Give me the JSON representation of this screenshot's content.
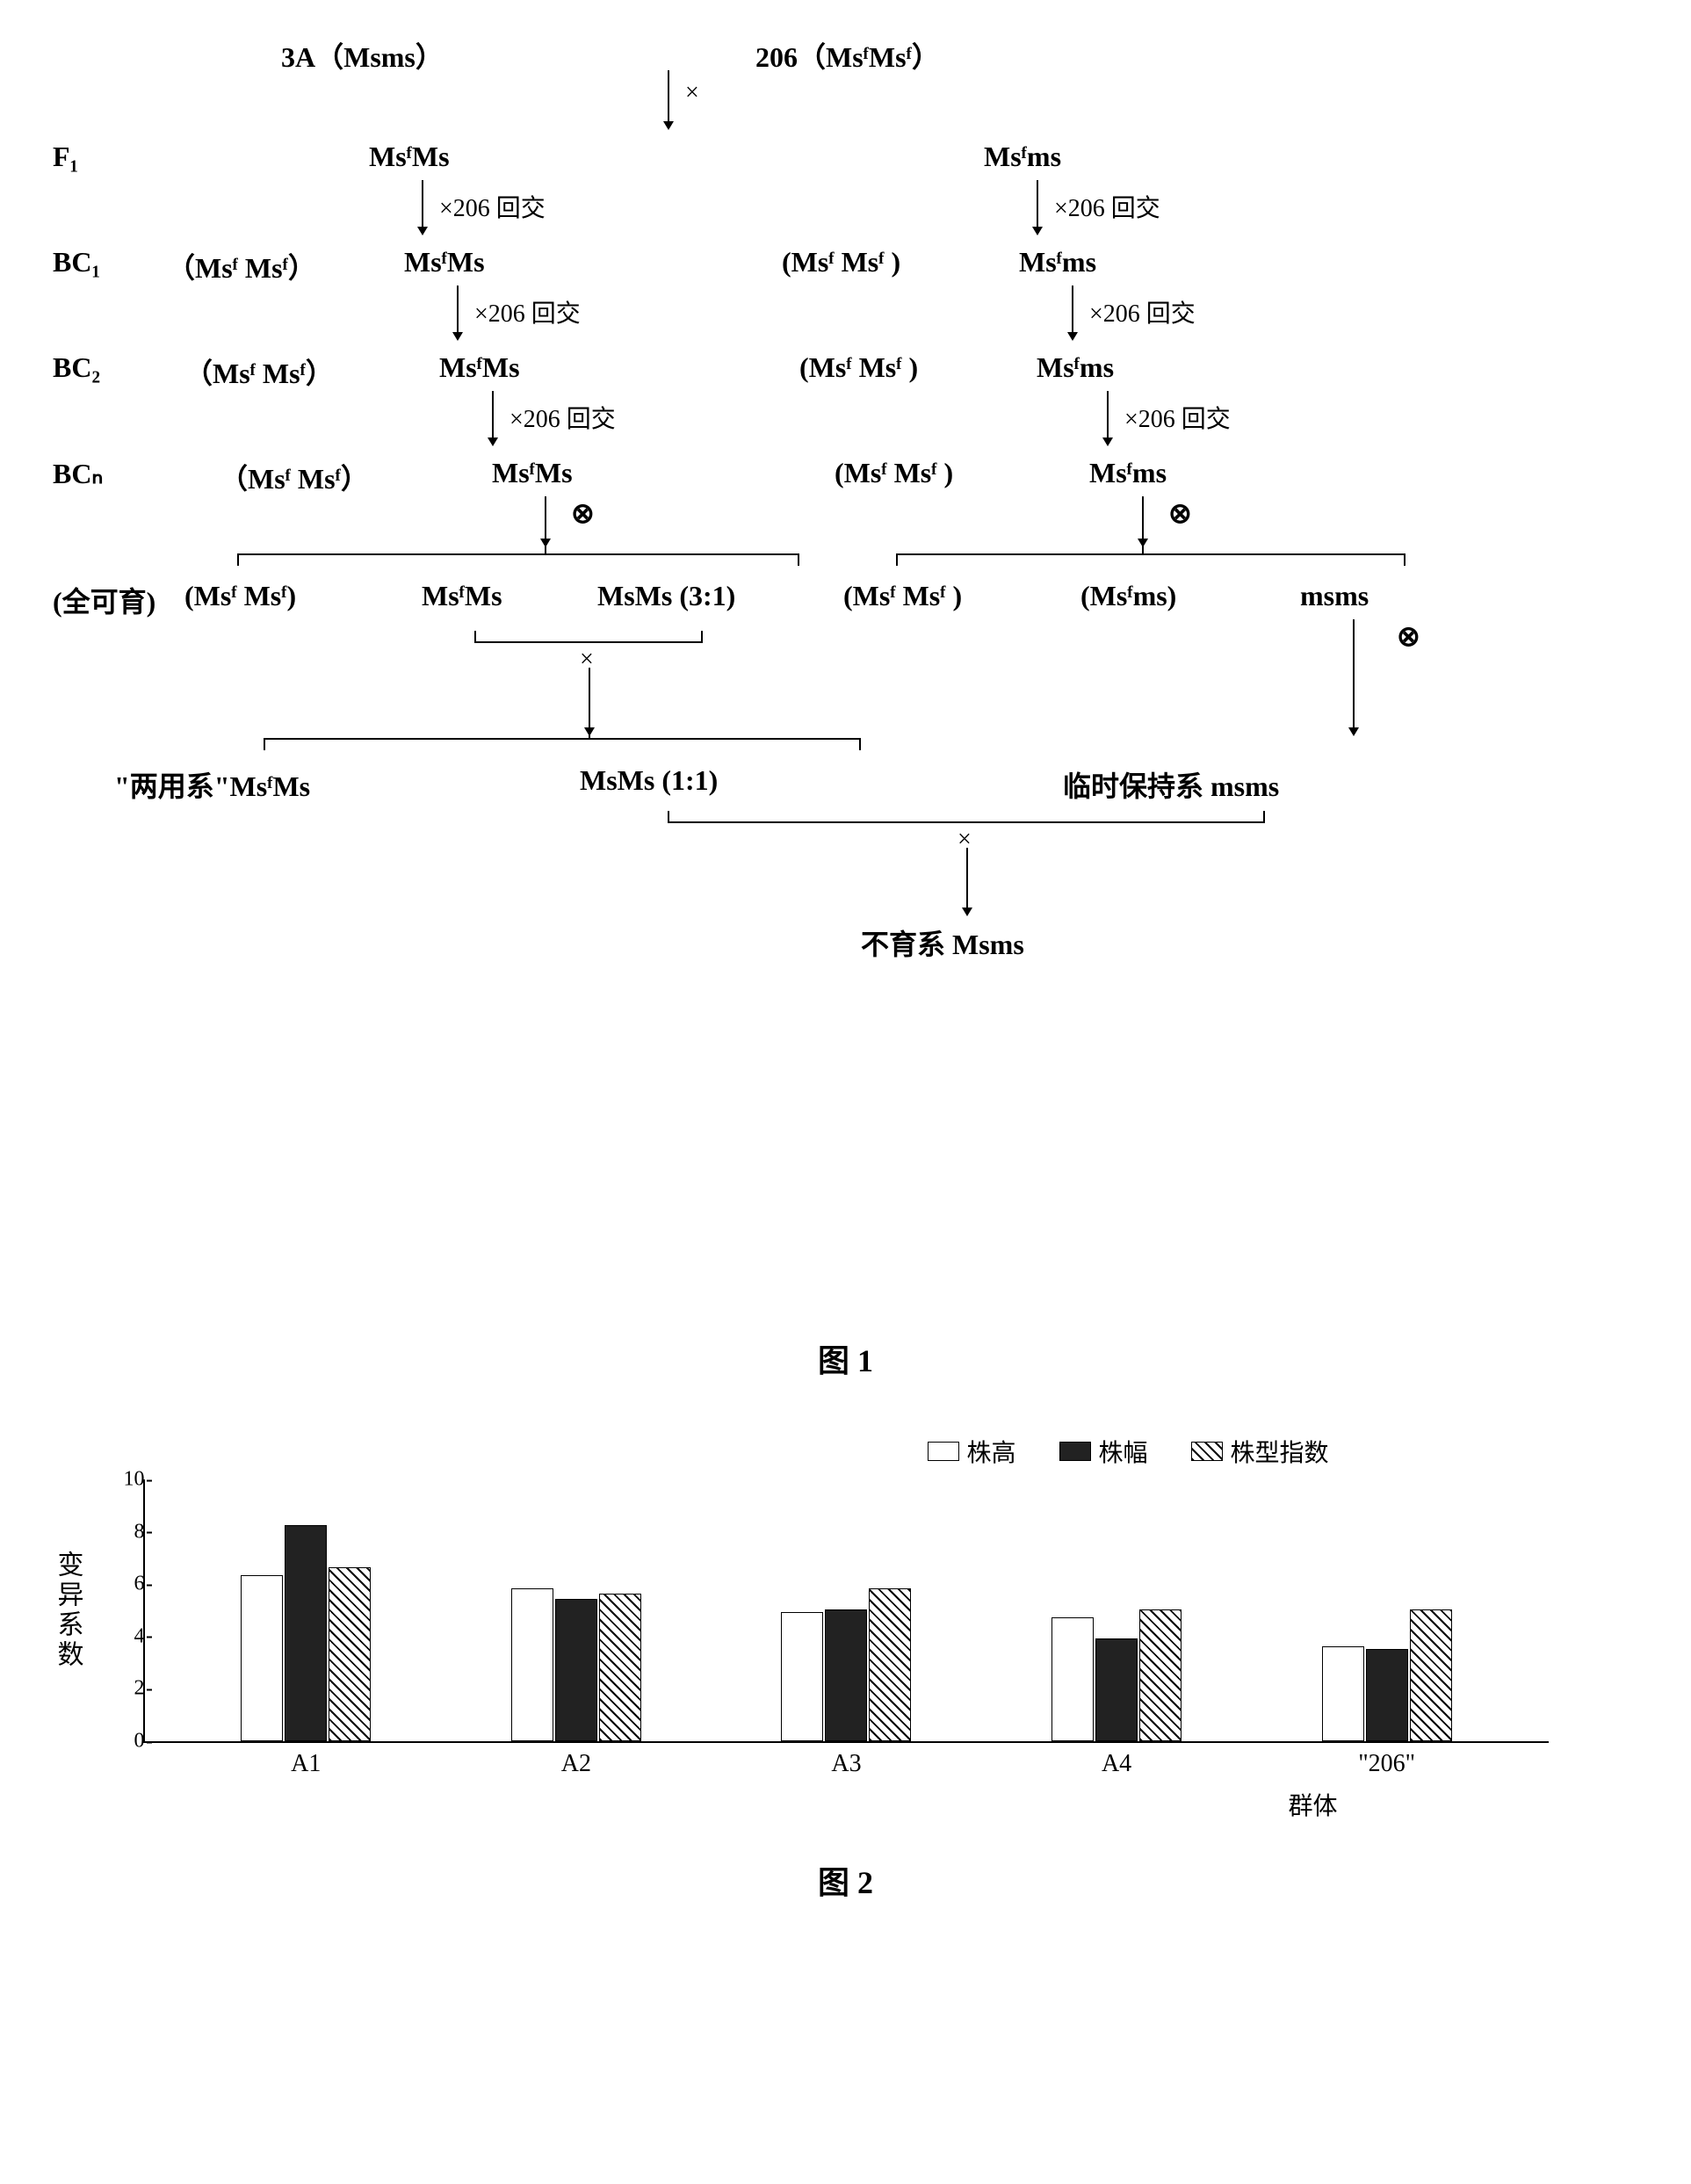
{
  "figure1": {
    "parents": {
      "left": "3A（Msms）",
      "right": "206（MsᶠMsᶠ）"
    },
    "cross_symbol": "×",
    "self_symbol": "⊗",
    "backcross_label": "×206 回交",
    "rows": [
      {
        "gen": "F₁",
        "left_paren": "",
        "left": "MsᶠMs",
        "right_paren": "",
        "right": "Msᶠms"
      },
      {
        "gen": "BC₁",
        "left_paren": "（Msᶠ Msᶠ）",
        "left": "MsᶠMs",
        "right_paren": "(Msᶠ Msᶠ )",
        "right": "Msᶠms"
      },
      {
        "gen": "BC₂",
        "left_paren": "（Msᶠ Msᶠ）",
        "left": "MsᶠMs",
        "right_paren": "(Msᶠ Msᶠ )",
        "right": "Msᶠms"
      },
      {
        "gen": "BCₙ",
        "left_paren": "（Msᶠ Msᶠ）",
        "left": "MsᶠMs",
        "right_paren": "(Msᶠ Msᶠ )",
        "right": "Msᶠms"
      }
    ],
    "seg_left": {
      "prefix": "(全可育)",
      "a": "(Msᶠ Msᶠ)",
      "b": "MsᶠMs",
      "c": "MsMs (3:1)"
    },
    "seg_right": {
      "a": "(Msᶠ Msᶠ )",
      "b": "(Msᶠms)",
      "c": "msms"
    },
    "cross2_left": "\"两用系\"MsᶠMs",
    "cross2_right": "MsMs (1:1)",
    "temp_maintainer": "临时保持系 msms",
    "final": "不育系 Msms",
    "caption": "图 1"
  },
  "figure2": {
    "legend": [
      "株高",
      "株幅",
      "株型指数"
    ],
    "legend_patterns": [
      "pat-light",
      "pat-dark",
      "pat-hatch"
    ],
    "ylabel": "变异系数",
    "xlabel": "群体",
    "ylim": [
      0,
      10
    ],
    "ytick_step": 2,
    "groups": [
      "A1",
      "A2",
      "A3",
      "A4",
      "\"206\""
    ],
    "series": [
      [
        6.3,
        5.8,
        4.9,
        4.7,
        3.6
      ],
      [
        8.2,
        5.4,
        5.0,
        3.9,
        3.5
      ],
      [
        6.6,
        5.6,
        5.8,
        5.0,
        5.0
      ]
    ],
    "bar_colors": [
      "#ffffff",
      "#222222",
      "hatch"
    ],
    "caption": "图 2"
  }
}
